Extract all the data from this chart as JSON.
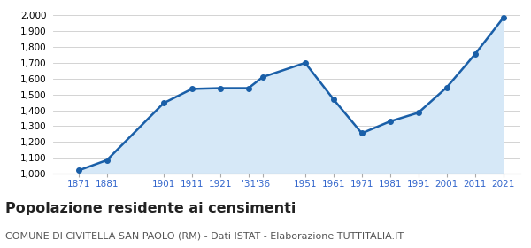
{
  "years": [
    1871,
    1881,
    1901,
    1911,
    1921,
    1931,
    1936,
    1951,
    1961,
    1971,
    1981,
    1991,
    2001,
    2011,
    2021
  ],
  "population": [
    1020,
    1085,
    1445,
    1535,
    1540,
    1540,
    1610,
    1700,
    1470,
    1255,
    1330,
    1385,
    1545,
    1755,
    1985
  ],
  "x_tick_labels": [
    "1871",
    "1881",
    "1901",
    "1911",
    "1921",
    "'31",
    "'36",
    "1951",
    "1961",
    "1971",
    "1981",
    "1991",
    "2001",
    "2011",
    "2021"
  ],
  "line_color": "#1a5fa8",
  "fill_color": "#d6e8f7",
  "xtick_color": "#3366cc",
  "marker": "o",
  "marker_size": 4,
  "ylim": [
    1000,
    2050
  ],
  "yticks": [
    1000,
    1100,
    1200,
    1300,
    1400,
    1500,
    1600,
    1700,
    1800,
    1900,
    2000
  ],
  "title": "Popolazione residente ai censimenti",
  "subtitle": "COMUNE DI CIVITELLA SAN PAOLO (RM) - Dati ISTAT - Elaborazione TUTTITALIA.IT",
  "title_fontsize": 11.5,
  "subtitle_fontsize": 8,
  "background_color": "#ffffff",
  "grid_color": "#cccccc",
  "xlim_left": 1862,
  "xlim_right": 2027
}
